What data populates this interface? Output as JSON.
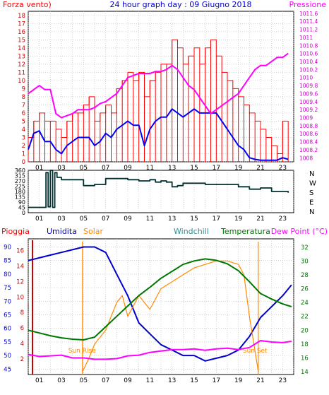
{
  "header": {
    "wind_label": "Forza vento)",
    "title": "24 hour graph day : 09 Giugno 2018",
    "pressure_label": "Pressione"
  },
  "colors": {
    "wind": "#ff0000",
    "gust": "#ff0000",
    "avg_wind": "#0000ff",
    "pressure": "#ff00ff",
    "direction": "#003030",
    "rain": "#cc0000",
    "humidity": "#0000cc",
    "solar": "#ff8800",
    "windchill": "#2f8f8f",
    "temperature": "#007700",
    "dewpoint": "#ff00ff",
    "grid": "#b8b8b8"
  },
  "bottom_labels": {
    "rain": "Pioggia",
    "humidity": "Umidita",
    "solar": "Solar",
    "windchill": "Windchill",
    "temperature": "Temperatura",
    "dewpoint": "Dew Point (°C)",
    "sunrise": "Sun Rise",
    "sunset": "Sun Set"
  },
  "chart_data": [
    {
      "type": "line",
      "panel": "wind-pressure",
      "x_ticks": [
        "01",
        "03",
        "05",
        "07",
        "09",
        "11",
        "13",
        "15",
        "17",
        "19",
        "21",
        "23"
      ],
      "left_axis": {
        "ylim": [
          0,
          18.5
        ],
        "ticks": [
          0,
          1,
          2,
          3,
          4,
          5,
          6,
          7,
          8,
          9,
          10,
          11,
          12,
          13,
          14,
          15,
          16,
          17,
          18
        ]
      },
      "right_axis": {
        "ylim": [
          1007.9,
          1011.65
        ],
        "ticks": [
          "1008",
          "1008.2",
          "1008.4",
          "1008.6",
          "1008.8",
          "1009",
          "1009.2",
          "1009.4",
          "1009.6",
          "1009.8",
          "1010",
          "1010.2",
          "1010.4",
          "1010.6",
          "1010.8",
          "1011",
          "1011.2",
          "1011.4",
          "1011.6"
        ]
      },
      "series": [
        {
          "name": "Forza vento)",
          "axis": "left",
          "color_key": "gust",
          "x": [
            0,
            0.5,
            1,
            1.5,
            2,
            2.5,
            3,
            3.5,
            4,
            4.5,
            5,
            5.5,
            6,
            6.5,
            7,
            7.5,
            8,
            8.5,
            9,
            9.5,
            10,
            10.5,
            11,
            11.5,
            12,
            12.5,
            13,
            13.5,
            14,
            14.5,
            15,
            15.5,
            16,
            16.5,
            17,
            17.5,
            18,
            18.5,
            19,
            19.5,
            20,
            20.5,
            21,
            21.5,
            22,
            22.5,
            23,
            23.5
          ],
          "values": [
            3,
            5,
            6,
            5,
            5,
            4,
            3,
            5,
            6,
            6,
            7,
            8,
            5,
            6,
            7,
            6,
            9,
            10,
            11,
            10,
            11,
            8,
            10,
            11,
            12,
            12,
            15,
            14,
            12,
            13,
            14,
            12,
            14,
            15,
            13,
            11,
            10,
            9,
            8,
            7,
            6,
            5,
            4,
            3,
            2,
            1,
            5,
            1
          ]
        },
        {
          "name": "",
          "axis": "left",
          "color_key": "avg_wind",
          "x": [
            0,
            0.5,
            1,
            1.5,
            2,
            2.5,
            3,
            3.5,
            4,
            4.5,
            5,
            5.5,
            6,
            6.5,
            7,
            7.5,
            8,
            8.5,
            9,
            9.5,
            10,
            10.5,
            11,
            11.5,
            12,
            12.5,
            13,
            13.5,
            14,
            14.5,
            15,
            15.5,
            16,
            16.5,
            17,
            17.5,
            18,
            18.5,
            19,
            19.5,
            20,
            20.5,
            21,
            21.5,
            22,
            22.5,
            23,
            23.5
          ],
          "values": [
            1.5,
            3.5,
            3.8,
            2.5,
            2.5,
            1.5,
            1,
            2,
            2.5,
            3,
            3,
            3,
            2,
            2.5,
            3.5,
            3,
            4,
            4.5,
            5,
            4.5,
            4.5,
            2,
            4,
            5,
            5.5,
            5.5,
            6.5,
            6,
            5.5,
            6,
            6.5,
            6,
            6,
            6,
            6,
            5,
            4,
            3,
            2,
            1.5,
            0.5,
            0.3,
            0.2,
            0.2,
            0.2,
            0.2,
            0.5,
            0.3
          ]
        },
        {
          "name": "Pressione",
          "axis": "right",
          "color_key": "pressure",
          "x": [
            0,
            0.5,
            1,
            1.5,
            2,
            2.5,
            3,
            3.5,
            4,
            4.5,
            5,
            5.5,
            6,
            6.5,
            7,
            7.5,
            8,
            8.5,
            9,
            9.5,
            10,
            10.5,
            11,
            11.5,
            12,
            12.5,
            13,
            13.5,
            14,
            14.5,
            15,
            15.5,
            16,
            16.5,
            17,
            17.5,
            18,
            18.5,
            19,
            19.5,
            20,
            20.5,
            21,
            21.5,
            22,
            22.5,
            23,
            23.5
          ],
          "values": [
            1009.6,
            1009.7,
            1009.8,
            1009.7,
            1009.7,
            1009.1,
            1009.0,
            1009.05,
            1009.1,
            1009.2,
            1009.2,
            1009.2,
            1009.25,
            1009.35,
            1009.4,
            1009.5,
            1009.6,
            1009.8,
            1010.0,
            1010.05,
            1010.1,
            1010.1,
            1010.1,
            1010.15,
            1010.15,
            1010.2,
            1010.3,
            1010.2,
            1010.0,
            1009.8,
            1009.7,
            1009.5,
            1009.3,
            1009.1,
            1009.2,
            1009.3,
            1009.4,
            1009.5,
            1009.6,
            1009.8,
            1010.0,
            1010.2,
            1010.3,
            1010.3,
            1010.4,
            1010.5,
            1010.5,
            1010.6
          ]
        }
      ]
    },
    {
      "type": "line",
      "panel": "wind-direction",
      "x_ticks": [
        "01",
        "03",
        "05",
        "07",
        "09",
        "11",
        "13",
        "15",
        "17",
        "19",
        "21",
        "23"
      ],
      "left_axis": {
        "ylim": [
          0,
          360
        ],
        "ticks": [
          0,
          45,
          90,
          135,
          180,
          225,
          270,
          315,
          360
        ]
      },
      "right_labels": [
        "N",
        "W",
        "S",
        "E",
        "N"
      ],
      "series": [
        {
          "name": "",
          "color_key": "direction",
          "x": [
            0,
            1,
            1.6,
            1.8,
            2,
            2.2,
            2.4,
            2.6,
            3,
            4,
            5,
            6,
            7,
            8,
            9,
            10,
            11,
            11.5,
            12,
            12.5,
            13,
            13.5,
            14,
            15,
            16,
            17,
            18,
            19,
            20,
            21,
            22,
            23,
            23.5
          ],
          "values": [
            45,
            45,
            340,
            50,
            360,
            45,
            340,
            300,
            280,
            280,
            230,
            240,
            290,
            290,
            280,
            270,
            280,
            260,
            270,
            260,
            220,
            230,
            250,
            250,
            240,
            240,
            240,
            220,
            200,
            210,
            180,
            180,
            170
          ]
        }
      ]
    },
    {
      "type": "line",
      "panel": "temperature-humidity",
      "x_ticks": [
        "01",
        "03",
        "05",
        "07",
        "09",
        "11",
        "13",
        "15",
        "17",
        "19",
        "21",
        "23"
      ],
      "left_axis": {
        "ylim": [
          43,
          93
        ],
        "ticks": [
          45,
          50,
          55,
          60,
          65,
          70,
          75,
          80,
          85,
          90
        ]
      },
      "rain_axis": {
        "ylim": [
          0,
          17.5
        ],
        "ticks": [
          2,
          4,
          6,
          8,
          10,
          12,
          14,
          16
        ]
      },
      "right_axis": {
        "ylim": [
          13.6,
          33.2
        ],
        "ticks": [
          14,
          16,
          18,
          20,
          22,
          24,
          26,
          28,
          30,
          32
        ]
      },
      "sunrise_hour": 4.9,
      "sunset_hour": 20.8,
      "series": [
        {
          "name": "Umidita",
          "axis": "left",
          "color_key": "humidity",
          "x": [
            0,
            1,
            2,
            3,
            4,
            5,
            6,
            7,
            8,
            9,
            10,
            11,
            12,
            13,
            14,
            15,
            16,
            17,
            18,
            19,
            20,
            21,
            22,
            23,
            23.8
          ],
          "values": [
            85,
            86,
            87,
            88,
            89,
            90,
            90,
            88,
            80,
            72,
            62,
            58,
            54,
            52,
            50,
            50,
            48,
            49,
            50,
            52,
            57,
            64,
            68,
            72,
            76
          ]
        },
        {
          "name": "Solar",
          "axis": "right",
          "color_key": "solar",
          "x": [
            4.9,
            5.5,
            6,
            7,
            8,
            8.5,
            9,
            10,
            11,
            12,
            13,
            14,
            15,
            16,
            17,
            18,
            19,
            19.5,
            20,
            20.5,
            20.8
          ],
          "values": [
            14,
            16,
            18,
            20,
            24,
            25,
            22,
            25,
            23,
            26,
            27,
            28,
            29,
            29.5,
            30,
            30,
            29.5,
            28,
            22,
            17,
            14
          ]
        },
        {
          "name": "Temperatura",
          "axis": "right",
          "color_key": "temperature",
          "x": [
            0,
            1,
            2,
            3,
            4,
            5,
            6,
            7,
            8,
            9,
            10,
            11,
            12,
            13,
            14,
            15,
            16,
            17,
            18,
            19,
            20,
            21,
            22,
            23,
            23.8
          ],
          "values": [
            20,
            19.6,
            19.2,
            18.9,
            18.7,
            18.6,
            19,
            20.5,
            22,
            23.5,
            25,
            26.2,
            27.5,
            28.5,
            29.5,
            30,
            30.3,
            30.1,
            29.6,
            28.6,
            27,
            25.3,
            24.5,
            23.8,
            23.4
          ]
        },
        {
          "name": "Dew Point (°C)",
          "axis": "right",
          "color_key": "dewpoint",
          "x": [
            0,
            1,
            2,
            3,
            4,
            5,
            6,
            7,
            8,
            9,
            10,
            11,
            12,
            13,
            14,
            15,
            16,
            17,
            18,
            19,
            20,
            21,
            22,
            23,
            23.8
          ],
          "values": [
            16.5,
            16.2,
            16.3,
            16.4,
            16,
            16,
            15.8,
            15.8,
            15.9,
            16.3,
            16.4,
            16.8,
            17,
            17.2,
            17.2,
            17.3,
            17.1,
            17.3,
            17.4,
            17.2,
            17.5,
            18.5,
            18.3,
            18.2,
            18.4
          ]
        }
      ]
    }
  ]
}
